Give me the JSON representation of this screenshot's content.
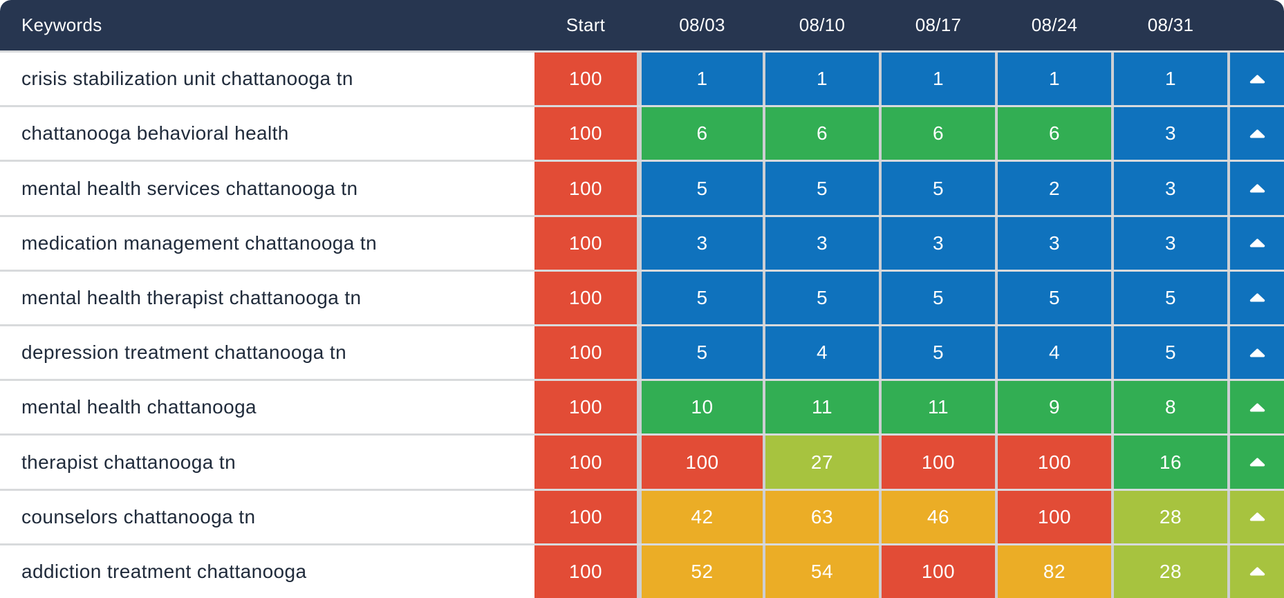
{
  "header": {
    "keywords_label": "Keywords",
    "columns": [
      "Start",
      "08/03",
      "08/10",
      "08/17",
      "08/24",
      "08/31"
    ]
  },
  "palette": {
    "header_bg": "#273650",
    "row_divider": "#D8DADC",
    "cell_gap": "#CDCFD3",
    "keyword_text": "#202B3B",
    "cell_text": "#FFFFFF",
    "ranks": {
      "blue": "#0F72BD",
      "green": "#32AE53",
      "lime": "#A7C33F",
      "orange": "#EBAD26",
      "red": "#E24C36"
    }
  },
  "rows": [
    {
      "keyword": "crisis stabilization unit chattanooga tn",
      "start": {
        "value": "100",
        "color": "red"
      },
      "cells": [
        {
          "value": "1",
          "color": "blue"
        },
        {
          "value": "1",
          "color": "blue"
        },
        {
          "value": "1",
          "color": "blue"
        },
        {
          "value": "1",
          "color": "blue"
        },
        {
          "value": "1",
          "color": "blue"
        }
      ],
      "trend": {
        "icon": "up-arrow",
        "color": "blue"
      }
    },
    {
      "keyword": "chattanooga behavioral health",
      "start": {
        "value": "100",
        "color": "red"
      },
      "cells": [
        {
          "value": "6",
          "color": "green"
        },
        {
          "value": "6",
          "color": "green"
        },
        {
          "value": "6",
          "color": "green"
        },
        {
          "value": "6",
          "color": "green"
        },
        {
          "value": "3",
          "color": "blue"
        }
      ],
      "trend": {
        "icon": "up-arrow",
        "color": "blue"
      }
    },
    {
      "keyword": "mental health services chattanooga tn",
      "start": {
        "value": "100",
        "color": "red"
      },
      "cells": [
        {
          "value": "5",
          "color": "blue"
        },
        {
          "value": "5",
          "color": "blue"
        },
        {
          "value": "5",
          "color": "blue"
        },
        {
          "value": "2",
          "color": "blue"
        },
        {
          "value": "3",
          "color": "blue"
        }
      ],
      "trend": {
        "icon": "up-arrow",
        "color": "blue"
      }
    },
    {
      "keyword": "medication management chattanooga tn",
      "start": {
        "value": "100",
        "color": "red"
      },
      "cells": [
        {
          "value": "3",
          "color": "blue"
        },
        {
          "value": "3",
          "color": "blue"
        },
        {
          "value": "3",
          "color": "blue"
        },
        {
          "value": "3",
          "color": "blue"
        },
        {
          "value": "3",
          "color": "blue"
        }
      ],
      "trend": {
        "icon": "up-arrow",
        "color": "blue"
      }
    },
    {
      "keyword": "mental health therapist chattanooga tn",
      "start": {
        "value": "100",
        "color": "red"
      },
      "cells": [
        {
          "value": "5",
          "color": "blue"
        },
        {
          "value": "5",
          "color": "blue"
        },
        {
          "value": "5",
          "color": "blue"
        },
        {
          "value": "5",
          "color": "blue"
        },
        {
          "value": "5",
          "color": "blue"
        }
      ],
      "trend": {
        "icon": "up-arrow",
        "color": "blue"
      }
    },
    {
      "keyword": "depression treatment chattanooga tn",
      "start": {
        "value": "100",
        "color": "red"
      },
      "cells": [
        {
          "value": "5",
          "color": "blue"
        },
        {
          "value": "4",
          "color": "blue"
        },
        {
          "value": "5",
          "color": "blue"
        },
        {
          "value": "4",
          "color": "blue"
        },
        {
          "value": "5",
          "color": "blue"
        }
      ],
      "trend": {
        "icon": "up-arrow",
        "color": "blue"
      }
    },
    {
      "keyword": "mental health chattanooga",
      "start": {
        "value": "100",
        "color": "red"
      },
      "cells": [
        {
          "value": "10",
          "color": "green"
        },
        {
          "value": "11",
          "color": "green"
        },
        {
          "value": "11",
          "color": "green"
        },
        {
          "value": "9",
          "color": "green"
        },
        {
          "value": "8",
          "color": "green"
        }
      ],
      "trend": {
        "icon": "up-arrow",
        "color": "green"
      }
    },
    {
      "keyword": "therapist chattanooga tn",
      "start": {
        "value": "100",
        "color": "red"
      },
      "cells": [
        {
          "value": "100",
          "color": "red"
        },
        {
          "value": "27",
          "color": "lime"
        },
        {
          "value": "100",
          "color": "red"
        },
        {
          "value": "100",
          "color": "red"
        },
        {
          "value": "16",
          "color": "green"
        }
      ],
      "trend": {
        "icon": "up-arrow",
        "color": "green"
      }
    },
    {
      "keyword": "counselors chattanooga tn",
      "start": {
        "value": "100",
        "color": "red"
      },
      "cells": [
        {
          "value": "42",
          "color": "orange"
        },
        {
          "value": "63",
          "color": "orange"
        },
        {
          "value": "46",
          "color": "orange"
        },
        {
          "value": "100",
          "color": "red"
        },
        {
          "value": "28",
          "color": "lime"
        }
      ],
      "trend": {
        "icon": "up-arrow",
        "color": "lime"
      }
    },
    {
      "keyword": "addiction treatment chattanooga",
      "start": {
        "value": "100",
        "color": "red"
      },
      "cells": [
        {
          "value": "52",
          "color": "orange"
        },
        {
          "value": "54",
          "color": "orange"
        },
        {
          "value": "100",
          "color": "red"
        },
        {
          "value": "82",
          "color": "orange"
        },
        {
          "value": "28",
          "color": "lime"
        }
      ],
      "trend": {
        "icon": "up-arrow",
        "color": "lime"
      }
    }
  ]
}
